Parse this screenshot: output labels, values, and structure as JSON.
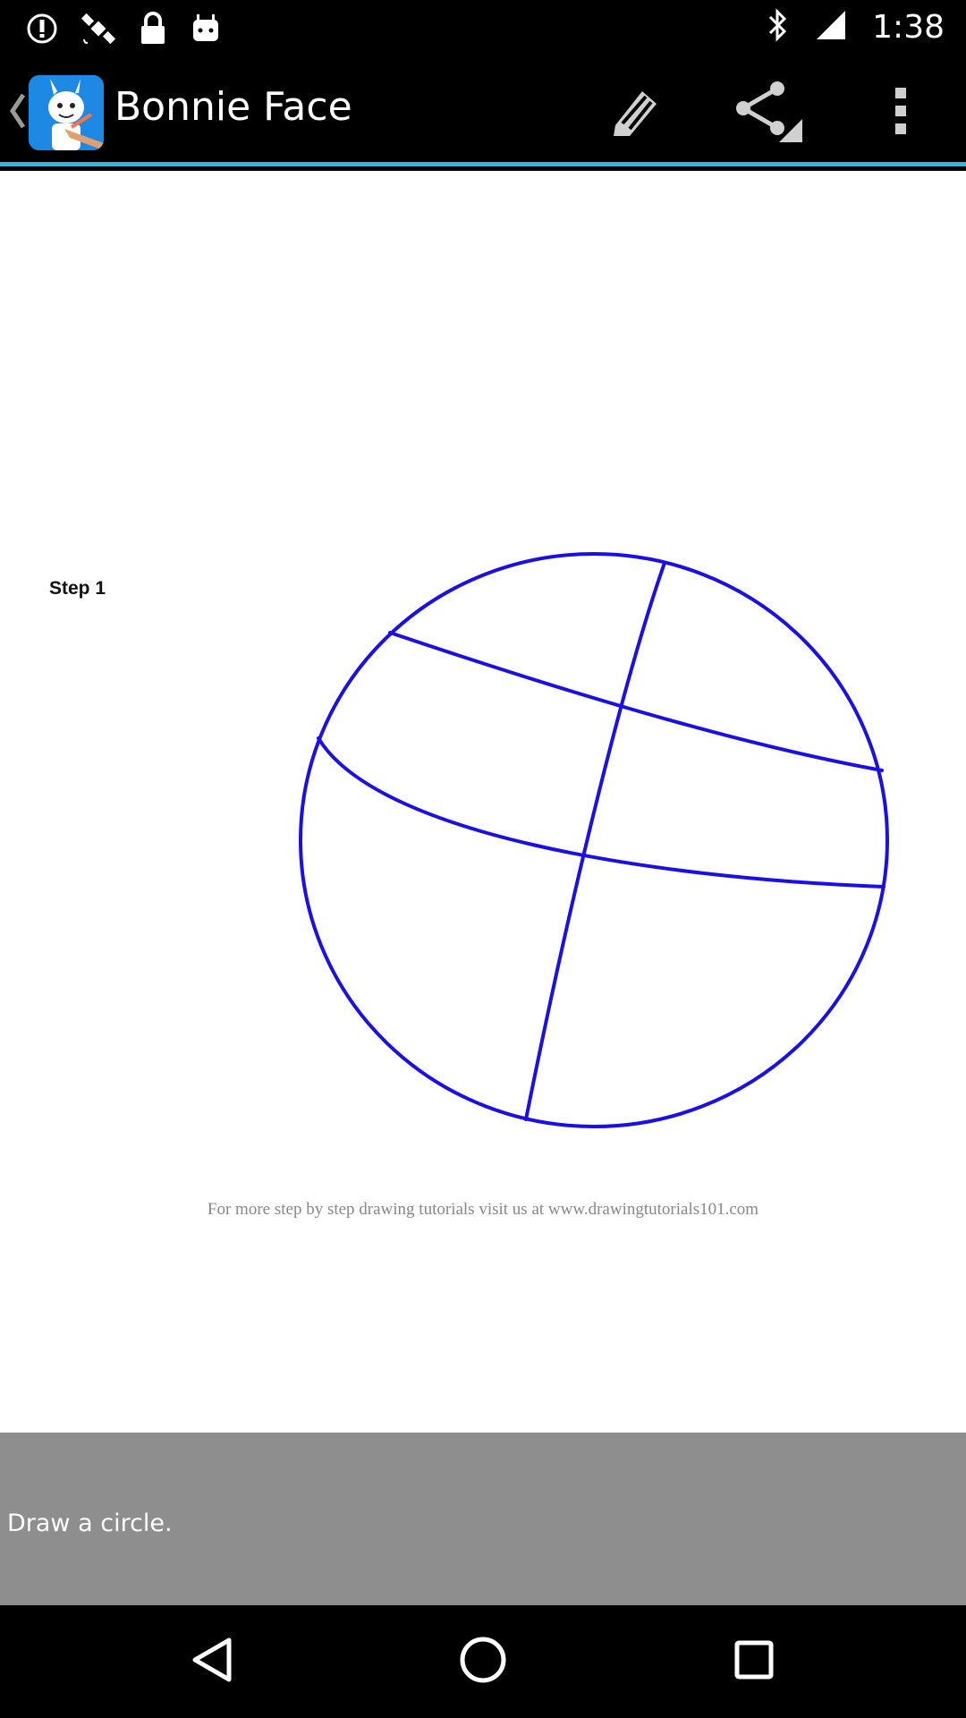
{
  "status_bar": {
    "time": "1:38",
    "icons": [
      "alert-icon",
      "satellite-icon",
      "lock-icon",
      "android-icon",
      "bluetooth-icon",
      "signal-icon"
    ]
  },
  "action_bar": {
    "title": "Bonnie Face",
    "icons": [
      "back-chevron-icon",
      "app-icon",
      "pencil-icon",
      "share-icon",
      "overflow-menu-icon"
    ]
  },
  "content": {
    "step_label": "Step 1",
    "credit": "For more step by step drawing tutorials visit us at www.drawingtutorials101.com",
    "stroke_color": "#1a0fe8"
  },
  "caption": {
    "text": "Draw a circle."
  },
  "nav_bar": {
    "icons": [
      "back-triangle-icon",
      "home-circle-icon",
      "recents-square-icon"
    ]
  },
  "colors": {
    "accent": "#33b5e5",
    "caption_bg": "#8e8e8e"
  }
}
